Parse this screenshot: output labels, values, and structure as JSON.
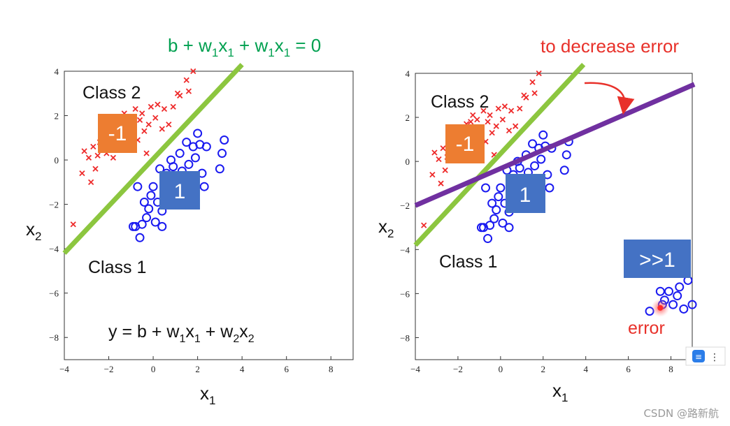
{
  "colors": {
    "red": "#ee2b2b",
    "blue": "#1a1af0",
    "green": "#8cc63f",
    "purple": "#7030a0",
    "orange_box": "#ed7d31",
    "blue_box": "#4472c4",
    "equation_green": "#00a050",
    "annotation_red": "#e8312a"
  },
  "chart_data": [
    {
      "type": "scatter",
      "xlabel": "x1",
      "ylabel": "x2",
      "xlim": [
        -4,
        9
      ],
      "ylim": [
        -9,
        4
      ],
      "x_ticks": [
        -4,
        -2,
        0,
        2,
        4,
        6,
        8
      ],
      "y_ticks": [
        4,
        2,
        0,
        -2,
        -4,
        -6,
        -8
      ],
      "series": [
        {
          "name": "Class 2",
          "marker": "x",
          "color": "red",
          "label": "-1",
          "points": [
            [
              -3.6,
              -2.9
            ],
            [
              -3.2,
              -0.6
            ],
            [
              -3.1,
              0.4
            ],
            [
              -2.9,
              0.1
            ],
            [
              -2.8,
              -1.0
            ],
            [
              -2.7,
              0.6
            ],
            [
              -2.6,
              -0.4
            ],
            [
              -2.5,
              0.2
            ],
            [
              -2.3,
              1.1
            ],
            [
              -2.1,
              0.3
            ],
            [
              -2.0,
              0.7
            ],
            [
              -1.9,
              1.4
            ],
            [
              -1.8,
              0.1
            ],
            [
              -1.6,
              1.7
            ],
            [
              -1.5,
              0.7
            ],
            [
              -1.4,
              1.8
            ],
            [
              -1.3,
              2.1
            ],
            [
              -1.2,
              1.2
            ],
            [
              -1.1,
              1.9
            ],
            [
              -1.0,
              0.7
            ],
            [
              -0.9,
              1.5
            ],
            [
              -0.8,
              2.3
            ],
            [
              -0.7,
              0.9
            ],
            [
              -0.6,
              1.8
            ],
            [
              -0.5,
              2.1
            ],
            [
              -0.4,
              1.3
            ],
            [
              -0.3,
              0.3
            ],
            [
              -0.2,
              1.6
            ],
            [
              -0.1,
              2.4
            ],
            [
              0.1,
              1.9
            ],
            [
              0.2,
              2.5
            ],
            [
              0.4,
              1.4
            ],
            [
              0.5,
              2.3
            ],
            [
              0.7,
              1.6
            ],
            [
              0.9,
              2.4
            ],
            [
              1.1,
              3.0
            ],
            [
              1.2,
              2.9
            ],
            [
              1.5,
              3.6
            ],
            [
              1.6,
              3.1
            ],
            [
              1.8,
              4.0
            ],
            [
              -1.8,
              1.0
            ],
            [
              -2.4,
              0.8
            ]
          ]
        },
        {
          "name": "Class 1",
          "marker": "o",
          "color": "blue",
          "label": "1",
          "points": [
            [
              -0.9,
              -3.0
            ],
            [
              -0.7,
              -1.2
            ],
            [
              -0.6,
              -3.5
            ],
            [
              -0.5,
              -2.9
            ],
            [
              -0.4,
              -1.9
            ],
            [
              -0.3,
              -2.6
            ],
            [
              -0.2,
              -2.2
            ],
            [
              -0.1,
              -1.6
            ],
            [
              0.0,
              -1.2
            ],
            [
              0.1,
              -2.8
            ],
            [
              0.2,
              -1.9
            ],
            [
              0.3,
              -0.4
            ],
            [
              0.4,
              -2.3
            ],
            [
              0.5,
              -1.0
            ],
            [
              0.6,
              -0.6
            ],
            [
              0.7,
              -2.0
            ],
            [
              0.8,
              0.0
            ],
            [
              0.9,
              -0.3
            ],
            [
              1.0,
              -1.3
            ],
            [
              1.1,
              -0.8
            ],
            [
              1.2,
              0.3
            ],
            [
              1.3,
              -0.5
            ],
            [
              1.4,
              -1.6
            ],
            [
              1.5,
              0.8
            ],
            [
              1.6,
              -0.2
            ],
            [
              1.7,
              -1.0
            ],
            [
              1.8,
              0.6
            ],
            [
              1.9,
              0.1
            ],
            [
              2.0,
              1.2
            ],
            [
              2.1,
              0.7
            ],
            [
              2.2,
              -0.6
            ],
            [
              2.3,
              -1.2
            ],
            [
              2.4,
              0.6
            ],
            [
              3.0,
              -0.4
            ],
            [
              3.1,
              0.3
            ],
            [
              3.2,
              0.9
            ],
            [
              -0.8,
              -3.0
            ],
            [
              0.4,
              -3.0
            ]
          ]
        }
      ],
      "lines": [
        {
          "name": "decision-boundary",
          "color": "green",
          "x": [
            -4,
            4
          ],
          "y": [
            -4.2,
            4.3
          ]
        }
      ],
      "labels": {
        "class2": "Class 2",
        "class1": "Class 1",
        "neg_box": "-1",
        "pos_box": "1"
      },
      "equation_top": {
        "prefix": "b + w",
        "sub1": "1",
        "mid": "x",
        "sub2": "1",
        "mid2": " + w",
        "sub3": "1",
        "mid3": "x",
        "sub4": "1",
        "suffix": " = 0"
      },
      "equation_bottom": {
        "prefix": "y = b + w",
        "sub1": "1",
        "mid": "x",
        "sub2": "1",
        "mid2": " + w",
        "sub3": "2",
        "mid3": "x",
        "sub4": "2"
      }
    },
    {
      "type": "scatter",
      "xlabel": "x1",
      "ylabel": "x2",
      "xlim": [
        -4,
        9
      ],
      "ylim": [
        -9,
        4
      ],
      "x_ticks": [
        -4,
        -2,
        0,
        2,
        4,
        6,
        8
      ],
      "y_ticks": [
        4,
        2,
        0,
        -2,
        -4,
        -6,
        -8
      ],
      "series": [
        {
          "name": "Class 2",
          "marker": "x",
          "color": "red",
          "label": "-1",
          "points": [
            [
              -3.6,
              -2.9
            ],
            [
              -3.2,
              -0.6
            ],
            [
              -3.1,
              0.4
            ],
            [
              -2.9,
              0.1
            ],
            [
              -2.8,
              -1.0
            ],
            [
              -2.7,
              0.6
            ],
            [
              -2.6,
              -0.4
            ],
            [
              -2.5,
              0.2
            ],
            [
              -2.3,
              1.1
            ],
            [
              -2.1,
              0.3
            ],
            [
              -2.0,
              0.7
            ],
            [
              -1.9,
              1.4
            ],
            [
              -1.8,
              0.1
            ],
            [
              -1.6,
              1.7
            ],
            [
              -1.5,
              0.7
            ],
            [
              -1.4,
              1.8
            ],
            [
              -1.3,
              2.1
            ],
            [
              -1.2,
              1.2
            ],
            [
              -1.1,
              1.9
            ],
            [
              -1.0,
              0.7
            ],
            [
              -0.9,
              1.5
            ],
            [
              -0.8,
              2.3
            ],
            [
              -0.7,
              0.9
            ],
            [
              -0.6,
              1.8
            ],
            [
              -0.5,
              2.1
            ],
            [
              -0.4,
              1.3
            ],
            [
              -0.3,
              0.3
            ],
            [
              -0.2,
              1.6
            ],
            [
              -0.1,
              2.4
            ],
            [
              0.1,
              1.9
            ],
            [
              0.2,
              2.5
            ],
            [
              0.4,
              1.4
            ],
            [
              0.5,
              2.3
            ],
            [
              0.7,
              1.6
            ],
            [
              0.9,
              2.4
            ],
            [
              1.1,
              3.0
            ],
            [
              1.2,
              2.9
            ],
            [
              1.5,
              3.6
            ],
            [
              1.6,
              3.1
            ],
            [
              1.8,
              4.0
            ],
            [
              -1.8,
              1.0
            ],
            [
              -2.4,
              0.8
            ]
          ]
        },
        {
          "name": "Class 1",
          "marker": "o",
          "color": "blue",
          "label": "1",
          "points": [
            [
              -0.9,
              -3.0
            ],
            [
              -0.7,
              -1.2
            ],
            [
              -0.6,
              -3.5
            ],
            [
              -0.5,
              -2.9
            ],
            [
              -0.4,
              -1.9
            ],
            [
              -0.3,
              -2.6
            ],
            [
              -0.2,
              -2.2
            ],
            [
              -0.1,
              -1.6
            ],
            [
              0.0,
              -1.2
            ],
            [
              0.1,
              -2.8
            ],
            [
              0.2,
              -1.9
            ],
            [
              0.3,
              -0.4
            ],
            [
              0.4,
              -2.3
            ],
            [
              0.5,
              -1.0
            ],
            [
              0.6,
              -0.6
            ],
            [
              0.7,
              -2.0
            ],
            [
              0.8,
              0.0
            ],
            [
              0.9,
              -0.3
            ],
            [
              1.0,
              -1.3
            ],
            [
              1.1,
              -0.8
            ],
            [
              1.2,
              0.3
            ],
            [
              1.3,
              -0.5
            ],
            [
              1.4,
              -1.6
            ],
            [
              1.5,
              0.8
            ],
            [
              1.6,
              -0.2
            ],
            [
              1.7,
              -1.0
            ],
            [
              1.8,
              0.6
            ],
            [
              1.9,
              0.1
            ],
            [
              2.0,
              1.2
            ],
            [
              2.1,
              0.7
            ],
            [
              2.2,
              -0.6
            ],
            [
              2.3,
              -1.2
            ],
            [
              2.4,
              0.6
            ],
            [
              3.0,
              -0.4
            ],
            [
              3.1,
              0.3
            ],
            [
              3.2,
              0.9
            ],
            [
              -0.8,
              -3.0
            ],
            [
              0.4,
              -3.0
            ]
          ]
        },
        {
          "name": "Class 1 (far)",
          "marker": "o",
          "color": "blue",
          "label": ">>1",
          "points": [
            [
              7.0,
              -6.8
            ],
            [
              7.5,
              -5.9
            ],
            [
              7.7,
              -6.3
            ],
            [
              7.9,
              -5.9
            ],
            [
              8.1,
              -6.5
            ],
            [
              8.3,
              -6.1
            ],
            [
              8.4,
              -5.7
            ],
            [
              8.6,
              -6.7
            ],
            [
              8.8,
              -5.4
            ],
            [
              9.0,
              -6.5
            ],
            [
              7.6,
              -6.5
            ]
          ]
        }
      ],
      "error_point": [
        7.5,
        -6.65
      ],
      "lines": [
        {
          "name": "original-boundary",
          "color": "green",
          "x": [
            -4,
            3.9
          ],
          "y": [
            -3.8,
            4.4
          ]
        },
        {
          "name": "shifted-boundary",
          "color": "purple",
          "x": [
            -4,
            9.1
          ],
          "y": [
            -2.0,
            3.5
          ]
        }
      ],
      "labels": {
        "class2": "Class 2",
        "class1": "Class 1",
        "neg_box": "-1",
        "pos_box": "1",
        "far_box": ">>1",
        "error": "error",
        "annotation": "to decrease error"
      }
    }
  ],
  "watermark": "CSDN @路新航",
  "widget_icon": "toolbar-widget-icon"
}
